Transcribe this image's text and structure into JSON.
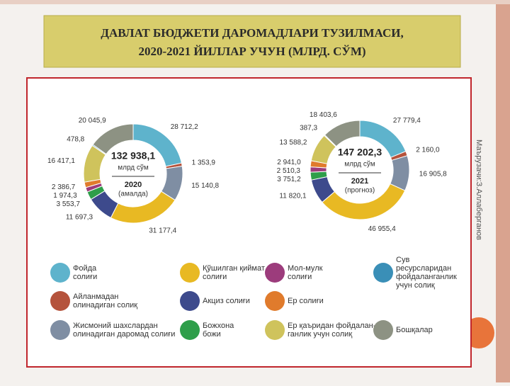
{
  "slide": {
    "title": [
      "ДАВЛАТ БЮДЖЕТИ ДАРОМАДЛАРИ ТУЗИЛМАСИ,",
      "2020-2021 ЙИЛЛАР УЧУН  (МЛРД. СЎМ)"
    ],
    "author": "Маърузачи:З.Аллаберганов"
  },
  "legend": {
    "categories": [
      [
        "Фойда",
        "солиғи"
      ],
      [
        "Айланмадан",
        "олинадиган солиқ"
      ],
      [
        "Жисмоний шахслардан",
        "олинадиган даромад солиғи"
      ],
      [
        "Қўшилган қиймат",
        "солиғи"
      ],
      [
        "Акциз солиғи"
      ],
      [
        "Божхона",
        "божи"
      ],
      [
        "Мол-мулк",
        "солиғи"
      ],
      [
        "Ер солиғи"
      ],
      [
        "Ер қаъридан фойдалан-",
        "ганлик учун солиқ"
      ],
      [
        "Сув",
        "ресурсларидан",
        "фойдаланганлик",
        "учун солиқ"
      ],
      [
        "Бошқалар"
      ]
    ],
    "colors": [
      "#5eb3cc",
      "#b5533c",
      "#7f8ea3",
      "#e8b923",
      "#3d4a8c",
      "#2e9e4a",
      "#9c3c7c",
      "#e07b2c",
      "#cfc35c",
      "#3a8fb7",
      "#8d9283"
    ]
  },
  "chart_data": [
    {
      "type": "pie",
      "center_value": "132 938,1",
      "center_unit": "млрд сўм",
      "year": "2020",
      "note": "(амалда)",
      "values": [
        28712.2,
        1353.9,
        15140.8,
        31177.4,
        11697.3,
        3553.7,
        1974.3,
        2386.7,
        16417.1,
        478.8,
        20045.9
      ],
      "value_labels": [
        "28 712,2",
        "1 353,9",
        "15 140,8",
        "31 177,4",
        "11 697,3",
        "3 553,7",
        "1 974,3",
        "2 386,7",
        "16 417,1",
        "478,8",
        "20 045,9"
      ]
    },
    {
      "type": "pie",
      "center_value": "147 202,3",
      "center_unit": "млрд сўм",
      "year": "2021",
      "note": "(прогноз)",
      "values": [
        27779.4,
        2160.0,
        16905.8,
        46955.4,
        11820.1,
        3751.2,
        2510.3,
        2941.0,
        13588.2,
        387.3,
        18403.6
      ],
      "value_labels": [
        "27 779,4",
        "2 160,0",
        "16 905,8",
        "46 955,4",
        "11 820,1",
        "3 751,2",
        "2 510,3",
        "2 941,0",
        "13 588,2",
        "387,3",
        "18 403,6"
      ]
    }
  ]
}
